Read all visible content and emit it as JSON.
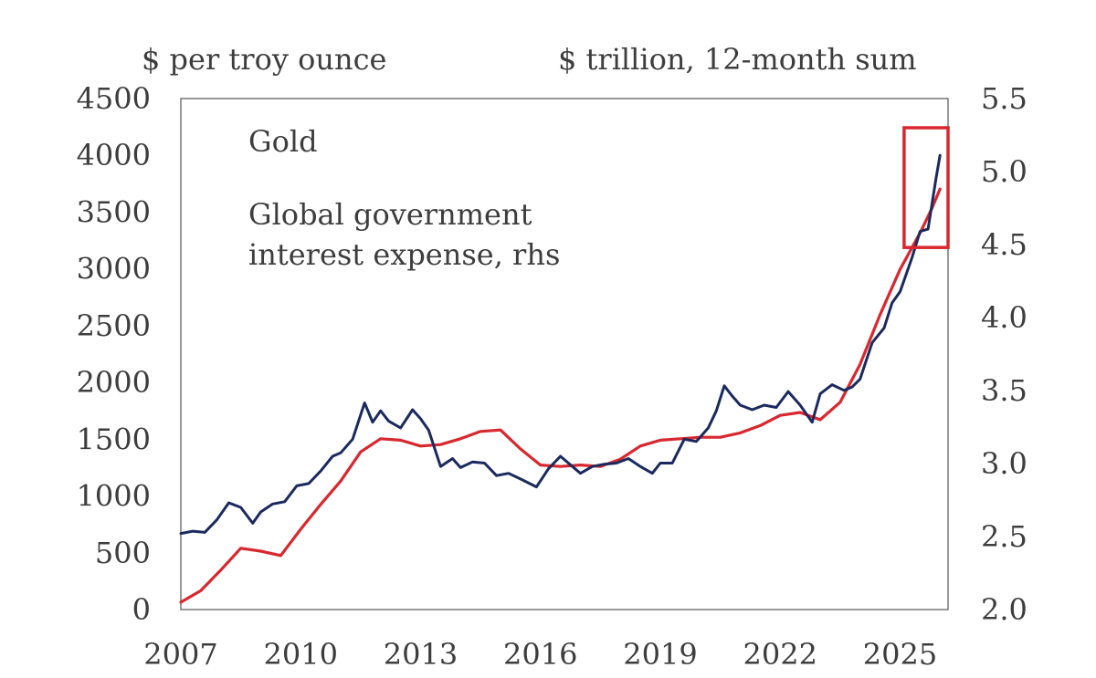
{
  "chart_data": {
    "type": "line",
    "title": "",
    "left_axis": {
      "label": "$ per troy ounce",
      "ylim": [
        0,
        4500
      ],
      "ticks": [
        "0",
        "500",
        "1000",
        "1500",
        "2000",
        "2500",
        "3000",
        "3500",
        "4000",
        "4500"
      ]
    },
    "right_axis": {
      "label": "$ trillion, 12-month sum",
      "ylim": [
        2.0,
        5.5
      ],
      "ticks": [
        "2.0",
        "2.5",
        "3.0",
        "3.5",
        "4.0",
        "4.5",
        "5.0",
        "5.5"
      ]
    },
    "x_axis": {
      "xlim": [
        2007,
        2026.2
      ],
      "ticks": [
        "2007",
        "2010",
        "2013",
        "2016",
        "2019",
        "2022",
        "2025"
      ]
    },
    "grid": false,
    "legend": "top-left, inside plot",
    "highlight_box": {
      "x_range": [
        2025.1,
        2026.2
      ],
      "y_range": [
        4.48,
        5.3
      ],
      "axis": "right",
      "color": "#d9272e"
    },
    "series": [
      {
        "name": "Gold",
        "axis": "left",
        "color": "#1b2a5e",
        "points": [
          [
            2007.0,
            670
          ],
          [
            2007.3,
            690
          ],
          [
            2007.6,
            680
          ],
          [
            2007.9,
            790
          ],
          [
            2008.2,
            940
          ],
          [
            2008.5,
            900
          ],
          [
            2008.8,
            760
          ],
          [
            2009.0,
            860
          ],
          [
            2009.3,
            930
          ],
          [
            2009.6,
            950
          ],
          [
            2009.9,
            1090
          ],
          [
            2010.2,
            1110
          ],
          [
            2010.5,
            1220
          ],
          [
            2010.8,
            1350
          ],
          [
            2011.0,
            1380
          ],
          [
            2011.3,
            1500
          ],
          [
            2011.6,
            1820
          ],
          [
            2011.8,
            1650
          ],
          [
            2012.0,
            1750
          ],
          [
            2012.2,
            1660
          ],
          [
            2012.5,
            1600
          ],
          [
            2012.8,
            1760
          ],
          [
            2013.0,
            1680
          ],
          [
            2013.2,
            1580
          ],
          [
            2013.5,
            1260
          ],
          [
            2013.8,
            1330
          ],
          [
            2014.0,
            1250
          ],
          [
            2014.3,
            1300
          ],
          [
            2014.6,
            1290
          ],
          [
            2014.9,
            1180
          ],
          [
            2015.2,
            1200
          ],
          [
            2015.5,
            1150
          ],
          [
            2015.9,
            1080
          ],
          [
            2016.2,
            1240
          ],
          [
            2016.5,
            1350
          ],
          [
            2016.8,
            1260
          ],
          [
            2017.0,
            1200
          ],
          [
            2017.3,
            1260
          ],
          [
            2017.6,
            1280
          ],
          [
            2017.9,
            1290
          ],
          [
            2018.2,
            1330
          ],
          [
            2018.5,
            1260
          ],
          [
            2018.8,
            1200
          ],
          [
            2019.0,
            1290
          ],
          [
            2019.3,
            1290
          ],
          [
            2019.6,
            1500
          ],
          [
            2019.9,
            1480
          ],
          [
            2020.2,
            1600
          ],
          [
            2020.4,
            1750
          ],
          [
            2020.6,
            1970
          ],
          [
            2020.8,
            1880
          ],
          [
            2021.0,
            1800
          ],
          [
            2021.3,
            1760
          ],
          [
            2021.6,
            1800
          ],
          [
            2021.9,
            1780
          ],
          [
            2022.2,
            1920
          ],
          [
            2022.5,
            1800
          ],
          [
            2022.8,
            1650
          ],
          [
            2023.0,
            1900
          ],
          [
            2023.3,
            1980
          ],
          [
            2023.6,
            1930
          ],
          [
            2023.8,
            1960
          ],
          [
            2024.0,
            2030
          ],
          [
            2024.3,
            2350
          ],
          [
            2024.6,
            2480
          ],
          [
            2024.8,
            2700
          ],
          [
            2025.0,
            2800
          ],
          [
            2025.3,
            3100
          ],
          [
            2025.5,
            3330
          ],
          [
            2025.7,
            3350
          ],
          [
            2025.9,
            3800
          ],
          [
            2026.0,
            4000
          ]
        ]
      },
      {
        "name": "Global government interest expense, rhs",
        "axis": "right",
        "color": "#d9272e",
        "points": [
          [
            2007.0,
            2.05
          ],
          [
            2007.5,
            2.13
          ],
          [
            2008.0,
            2.27
          ],
          [
            2008.5,
            2.42
          ],
          [
            2009.0,
            2.4
          ],
          [
            2009.5,
            2.37
          ],
          [
            2010.0,
            2.55
          ],
          [
            2010.5,
            2.72
          ],
          [
            2011.0,
            2.88
          ],
          [
            2011.5,
            3.08
          ],
          [
            2012.0,
            3.17
          ],
          [
            2012.5,
            3.16
          ],
          [
            2013.0,
            3.12
          ],
          [
            2013.5,
            3.13
          ],
          [
            2014.0,
            3.17
          ],
          [
            2014.5,
            3.22
          ],
          [
            2015.0,
            3.23
          ],
          [
            2015.5,
            3.1
          ],
          [
            2016.0,
            2.99
          ],
          [
            2016.5,
            2.98
          ],
          [
            2017.0,
            2.99
          ],
          [
            2017.5,
            2.98
          ],
          [
            2018.0,
            3.03
          ],
          [
            2018.5,
            3.12
          ],
          [
            2019.0,
            3.16
          ],
          [
            2019.5,
            3.17
          ],
          [
            2020.0,
            3.18
          ],
          [
            2020.5,
            3.18
          ],
          [
            2021.0,
            3.21
          ],
          [
            2021.5,
            3.26
          ],
          [
            2022.0,
            3.33
          ],
          [
            2022.5,
            3.35
          ],
          [
            2023.0,
            3.3
          ],
          [
            2023.5,
            3.42
          ],
          [
            2024.0,
            3.68
          ],
          [
            2024.5,
            4.02
          ],
          [
            2025.0,
            4.33
          ],
          [
            2025.5,
            4.58
          ],
          [
            2025.8,
            4.75
          ],
          [
            2026.0,
            4.88
          ]
        ]
      }
    ]
  }
}
